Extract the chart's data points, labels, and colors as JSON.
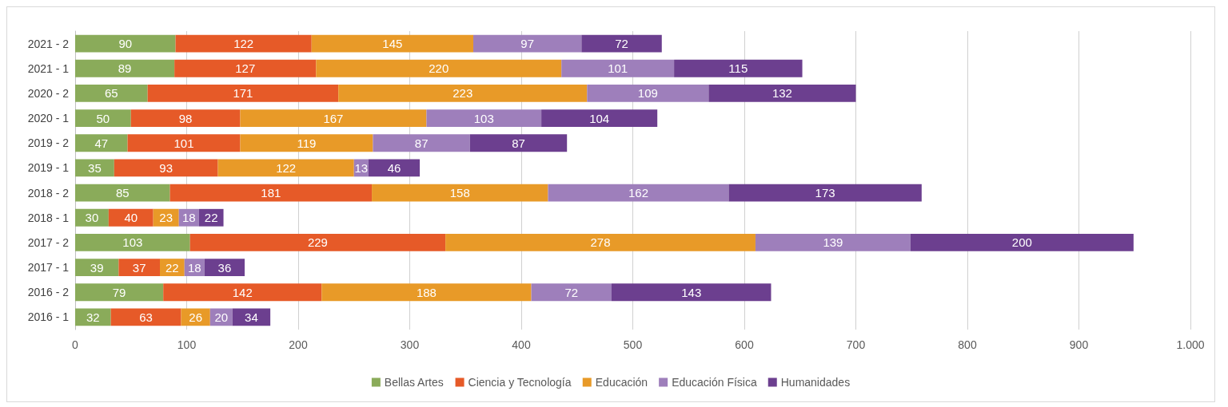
{
  "chart_data": {
    "type": "bar",
    "orientation": "horizontal",
    "stacked": true,
    "data_labels": true,
    "grid": "x",
    "legend": "bottom",
    "categories": [
      "2021 - 2",
      "2021 - 1",
      "2020 - 2",
      "2020 - 1",
      "2019 - 2",
      "2019 - 1",
      "2018 - 2",
      "2018 - 1",
      "2017 - 2",
      "2017 - 1",
      "2016 - 2",
      "2016 - 1"
    ],
    "xlim": [
      0,
      1000
    ],
    "xticks": [
      0,
      100,
      200,
      300,
      400,
      500,
      600,
      700,
      800,
      900,
      {
        "value": 1000,
        "label": "1.000"
      }
    ],
    "series": [
      {
        "name": "Bellas Artes",
        "color": "#8aab5a",
        "values": [
          90,
          89,
          65,
          50,
          47,
          35,
          85,
          30,
          103,
          39,
          79,
          32
        ]
      },
      {
        "name": "Ciencia y Tecnología",
        "color": "#e65a28",
        "values": [
          122,
          127,
          171,
          98,
          101,
          93,
          181,
          40,
          229,
          37,
          142,
          63
        ]
      },
      {
        "name": "Educación",
        "color": "#e89a28",
        "values": [
          145,
          220,
          223,
          167,
          119,
          122,
          158,
          23,
          278,
          22,
          188,
          26
        ]
      },
      {
        "name": "Educación Física",
        "color": "#9e7fbb",
        "values": [
          97,
          101,
          109,
          103,
          87,
          13,
          162,
          18,
          139,
          18,
          72,
          20
        ]
      },
      {
        "name": "Humanidades",
        "color": "#6c3f8f",
        "values": [
          72,
          115,
          132,
          104,
          87,
          46,
          173,
          22,
          200,
          36,
          143,
          34
        ]
      }
    ]
  }
}
